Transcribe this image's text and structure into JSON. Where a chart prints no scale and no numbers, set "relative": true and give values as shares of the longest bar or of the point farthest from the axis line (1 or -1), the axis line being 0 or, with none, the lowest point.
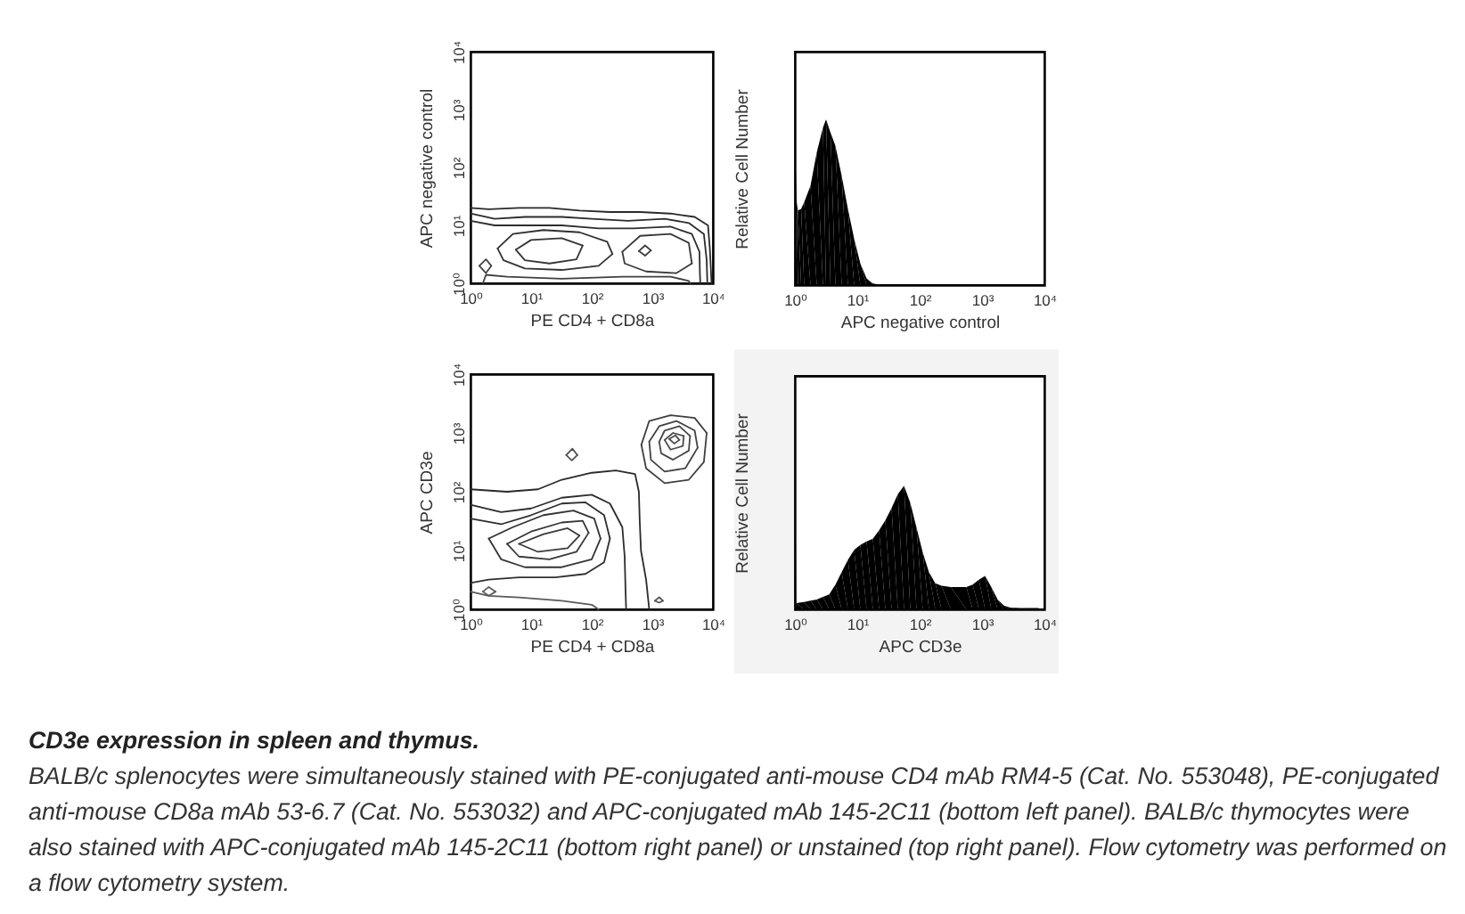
{
  "chart_data": [
    {
      "type": "line",
      "log": "xy",
      "xlabel": "PE CD4 + CD8a",
      "ylabel": "APC negative control",
      "xlim": [
        1,
        10000
      ],
      "ylim": [
        1,
        10000
      ],
      "xticks": [
        {
          "value": 1,
          "label": "10⁰"
        },
        {
          "value": 10,
          "label": "10¹"
        },
        {
          "value": 100,
          "label": "10²"
        },
        {
          "value": 1000,
          "label": "10³"
        },
        {
          "value": 10000,
          "label": "10⁴"
        }
      ],
      "yticks": [
        {
          "value": 1,
          "label": "10⁰"
        },
        {
          "value": 10,
          "label": "10¹"
        },
        {
          "value": 100,
          "label": "10²"
        },
        {
          "value": 1000,
          "label": "10³"
        },
        {
          "value": 10000,
          "label": "10⁴"
        }
      ],
      "series": [
        {
          "color": "#2a2a2a",
          "x": [
            1,
            2,
            6.3,
            20,
            63,
            200,
            630,
            2000,
            5000,
            8300,
            8900,
            9300,
            9500
          ],
          "values": [
            20,
            19,
            20,
            20,
            18,
            17,
            17,
            16,
            14,
            10,
            4,
            1.6,
            1
          ]
        },
        {
          "color": "#2c2c2c",
          "x": [
            1,
            2.5,
            7.9,
            32,
            100,
            400,
            1600,
            4000,
            7100,
            7900,
            8100
          ],
          "values": [
            16,
            13,
            14,
            14,
            13,
            12,
            13,
            11,
            7.1,
            2.5,
            1
          ]
        },
        {
          "color": "#2e2e2e",
          "x": [
            1,
            2.5,
            7.9,
            32,
            130,
            500,
            2000,
            4500,
            6000,
            6100,
            6200
          ],
          "values": [
            12,
            10,
            10,
            10,
            8.9,
            8.9,
            9.5,
            7.1,
            3.5,
            1.5,
            1
          ]
        },
        {
          "color": "#303030",
          "x": [
            2.8,
            5,
            16,
            63,
            180,
            220
          ],
          "values": [
            4,
            7.1,
            8.3,
            7.6,
            5.2,
            3.2
          ]
        },
        {
          "color": "#323232",
          "x": [
            2.8,
            3.5,
            7.9,
            32,
            130,
            220
          ],
          "values": [
            4,
            2.5,
            1.8,
            1.7,
            2,
            3.2
          ]
        },
        {
          "color": "#343434",
          "x": [
            5.6,
            10,
            32,
            71
          ],
          "values": [
            3.8,
            5.6,
            6,
            4.5
          ]
        },
        {
          "color": "#363636",
          "x": [
            5.6,
            7.9,
            20,
            56,
            71
          ],
          "values": [
            3.8,
            2.5,
            2.2,
            2.6,
            4.5
          ]
        },
        {
          "color": "#383838",
          "x": [
            320,
            630,
            2000,
            4000,
            4500
          ],
          "values": [
            3.5,
            6.6,
            7.1,
            5,
            2.2
          ]
        },
        {
          "color": "#3a3a3a",
          "x": [
            320,
            350,
            790,
            2500,
            4500
          ],
          "values": [
            3.5,
            2.2,
            1.6,
            1.5,
            2.2
          ]
        },
        {
          "color": "#3c3c3c",
          "x": [
            600,
            760,
            950
          ],
          "values": [
            3.6,
            4.5,
            3.7
          ]
        },
        {
          "color": "#3e3e3e",
          "x": [
            600,
            760,
            950
          ],
          "values": [
            3.6,
            3,
            3.7
          ]
        },
        {
          "color": "#404040",
          "x": [
            1.6,
            1.8,
            4,
            32,
            320,
            2000,
            4000,
            4200
          ],
          "values": [
            1,
            1.4,
            1.3,
            1.2,
            1.3,
            1.3,
            1.1,
            1
          ]
        },
        {
          "color": "#424242",
          "x": [
            1.4,
            1.8,
            2.2
          ],
          "values": [
            2,
            2.6,
            2
          ]
        },
        {
          "color": "#444444",
          "x": [
            1.4,
            1.8,
            2.2
          ],
          "values": [
            2,
            1.5,
            2
          ]
        }
      ]
    },
    {
      "type": "area",
      "relative": true,
      "log": "x",
      "color": "#000000",
      "xlabel": "APC negative control",
      "ylabel": "Relative Cell Number",
      "xlim": [
        1,
        10000
      ],
      "xticks": [
        {
          "value": 1,
          "label": "10⁰"
        },
        {
          "value": 10,
          "label": "10¹"
        },
        {
          "value": 100,
          "label": "10²"
        },
        {
          "value": 1000,
          "label": "10³"
        },
        {
          "value": 10000,
          "label": "10⁴"
        }
      ],
      "x": [
        1,
        1.07,
        1.12,
        1.26,
        1.41,
        1.78,
        2.24,
        2.82,
        3.16,
        3.72,
        4.47,
        5.62,
        7.08,
        8.91,
        11.2,
        14.1,
        17.8,
        25.1
      ],
      "values": [
        0.88,
        0.5,
        0.45,
        0.46,
        0.5,
        0.6,
        0.8,
        0.95,
        1,
        0.92,
        0.84,
        0.66,
        0.46,
        0.28,
        0.13,
        0.04,
        0.01,
        0
      ]
    },
    {
      "type": "line",
      "log": "xy",
      "xlabel": "PE CD4 + CD8a",
      "ylabel": "APC CD3e",
      "xlim": [
        1,
        10000
      ],
      "ylim": [
        1,
        10000
      ],
      "xticks": [
        {
          "value": 1,
          "label": "10⁰"
        },
        {
          "value": 10,
          "label": "10¹"
        },
        {
          "value": 100,
          "label": "10²"
        },
        {
          "value": 1000,
          "label": "10³"
        },
        {
          "value": 10000,
          "label": "10⁴"
        }
      ],
      "yticks": [
        {
          "value": 1,
          "label": "10⁰"
        },
        {
          "value": 10,
          "label": "10¹"
        },
        {
          "value": 100,
          "label": "10²"
        },
        {
          "value": 1000,
          "label": "10³"
        },
        {
          "value": 10000,
          "label": "10⁴"
        }
      ],
      "series": [
        {
          "color": "#2a2a2a",
          "x": [
            1,
            4,
            13,
            32,
            100,
            250,
            520,
            600,
            620,
            650,
            790,
            890
          ],
          "values": [
            110,
            100,
            110,
            160,
            210,
            230,
            200,
            100,
            32,
            10,
            3.2,
            1
          ]
        },
        {
          "color": "#2c2c2c",
          "x": [
            1,
            3.2,
            10,
            32,
            100,
            200,
            320,
            350,
            360,
            370
          ],
          "values": [
            60,
            45,
            52,
            79,
            89,
            63,
            25,
            7.9,
            2.5,
            1
          ]
        },
        {
          "color": "#2e2e2e",
          "x": [
            1,
            3.2,
            10,
            32,
            79,
            160,
            200
          ],
          "values": [
            35,
            28,
            40,
            63,
            66,
            40,
            16
          ]
        },
        {
          "color": "#303030",
          "x": [
            1,
            2,
            6.3,
            25,
            79,
            160,
            200
          ],
          "values": [
            2.8,
            3.2,
            3.5,
            3.5,
            4,
            6.3,
            16
          ]
        },
        {
          "color": "#323232",
          "x": [
            2,
            5,
            16,
            50,
            110,
            140
          ],
          "values": [
            16,
            25,
            40,
            48,
            35,
            16
          ]
        },
        {
          "color": "#343434",
          "x": [
            2,
            3.2,
            7.9,
            32,
            100,
            140
          ],
          "values": [
            16,
            7.1,
            5.2,
            5.2,
            7.1,
            16
          ]
        },
        {
          "color": "#363636",
          "x": [
            4,
            10,
            32,
            71,
            89
          ],
          "values": [
            13,
            21,
            30,
            32,
            20
          ]
        },
        {
          "color": "#383838",
          "x": [
            4,
            6.3,
            20,
            56,
            89
          ],
          "values": [
            13,
            7.9,
            7.1,
            9.5,
            20
          ]
        },
        {
          "color": "#3a3a3a",
          "x": [
            6.3,
            16,
            40,
            63
          ],
          "values": [
            13,
            19,
            24,
            18
          ]
        },
        {
          "color": "#3c3c3c",
          "x": [
            6.3,
            13,
            40,
            63
          ],
          "values": [
            13,
            9.5,
            11,
            18
          ]
        },
        {
          "color": "#3e3e3e",
          "x": [
            660,
            890,
            2000,
            5000,
            7900
          ],
          "values": [
            630,
            1600,
            2000,
            1800,
            1000
          ]
        },
        {
          "color": "#404040",
          "x": [
            660,
            790,
            1600,
            4000,
            7100,
            7900
          ],
          "values": [
            630,
            250,
            140,
            160,
            320,
            1000
          ]
        },
        {
          "color": "#424242",
          "x": [
            890,
            1300,
            2500,
            5000,
            5600
          ],
          "values": [
            710,
            1300,
            1600,
            1100,
            560
          ]
        },
        {
          "color": "#444444",
          "x": [
            890,
            950,
            1600,
            3500,
            5600
          ],
          "values": [
            710,
            350,
            220,
            250,
            560
          ]
        },
        {
          "color": "#464646",
          "x": [
            1300,
            1600,
            2800,
            4200
          ],
          "values": [
            710,
            1100,
            1300,
            890
          ]
        },
        {
          "color": "#484848",
          "x": [
            1300,
            1400,
            2200,
            4000,
            4200
          ],
          "values": [
            710,
            450,
            350,
            500,
            890
          ]
        },
        {
          "color": "#4a4a4a",
          "x": [
            1600,
            2200,
            3300
          ],
          "values": [
            760,
            1000,
            890
          ]
        },
        {
          "color": "#4c4c4c",
          "x": [
            1600,
            2000,
            3200,
            3300
          ],
          "values": [
            760,
            520,
            600,
            890
          ]
        },
        {
          "color": "#4e4e4e",
          "x": [
            1900,
            2400,
            2800
          ],
          "values": [
            790,
            910,
            760
          ]
        },
        {
          "color": "#505050",
          "x": [
            1900,
            2300,
            2800
          ],
          "values": [
            790,
            660,
            760
          ]
        },
        {
          "color": "#525252",
          "x": [
            38,
            48,
            58
          ],
          "values": [
            420,
            540,
            420
          ]
        },
        {
          "color": "#545454",
          "x": [
            38,
            47,
            58
          ],
          "values": [
            420,
            340,
            420
          ]
        },
        {
          "color": "#565656",
          "x": [
            1100,
            1300,
            1500
          ],
          "values": [
            1.4,
            1.6,
            1.4
          ]
        },
        {
          "color": "#585858",
          "x": [
            1100,
            1300,
            1500
          ],
          "values": [
            1.4,
            1.3,
            1.4
          ]
        },
        {
          "color": "#5a5a5a",
          "x": [
            1,
            2,
            6.3,
            32,
            100,
            130
          ],
          "values": [
            2,
            1.7,
            1.6,
            1.4,
            1.2,
            1
          ]
        },
        {
          "color": "#5c5c5c",
          "x": [
            1.6,
            2,
            2.6
          ],
          "values": [
            2,
            2.4,
            2
          ]
        },
        {
          "color": "#5e5e5e",
          "x": [
            1.6,
            2,
            2.6
          ],
          "values": [
            2,
            1.7,
            2
          ]
        }
      ]
    },
    {
      "type": "area",
      "relative": true,
      "log": "x",
      "color": "#000000",
      "xlabel": "APC CD3e",
      "ylabel": "Relative Cell Number",
      "xlim": [
        1,
        10000
      ],
      "xticks": [
        {
          "value": 1,
          "label": "10⁰"
        },
        {
          "value": 10,
          "label": "10¹"
        },
        {
          "value": 100,
          "label": "10²"
        },
        {
          "value": 1000,
          "label": "10³"
        },
        {
          "value": 10000,
          "label": "10⁴"
        }
      ],
      "x": [
        1,
        1.02,
        1.05,
        1.41,
        1.78,
        2.24,
        2.82,
        3.55,
        4.47,
        5.62,
        7.08,
        8.91,
        11.2,
        14.1,
        17.8,
        22.4,
        28.2,
        35.5,
        44.7,
        56.2,
        70.8,
        89.1,
        112,
        141,
        178,
        224,
        316,
        562,
        708,
        891,
        1120,
        1410,
        1780,
        2240,
        2820,
        3980,
        7940,
        8910
      ],
      "values": [
        0.98,
        0.98,
        0.05,
        0.06,
        0.07,
        0.08,
        0.1,
        0.12,
        0.2,
        0.3,
        0.4,
        0.48,
        0.52,
        0.55,
        0.57,
        0.64,
        0.72,
        0.82,
        0.93,
        1,
        0.86,
        0.66,
        0.46,
        0.3,
        0.21,
        0.19,
        0.18,
        0.18,
        0.2,
        0.24,
        0.27,
        0.18,
        0.08,
        0.03,
        0.015,
        0.01,
        0.01,
        0
      ]
    },
    {
      "type": "other",
      "title": "CD3e expression in spleen and thymus.",
      "annotations": [
        "BALB/c splenocytes were simultaneously stained with PE-conjugated anti-mouse CD4 mAb RM4-5 (Cat. No. 553048), PE-conjugated anti-mouse CD8a mAb 53-6.7 (Cat. No. 553032) and APC-conjugated mAb 145-2C11 (bottom left panel). BALB/c thymocytes were also stained with APC-conjugated mAb 145-2C11 (bottom right panel) or unstained (top right panel). Flow cytometry was performed on a flow cytometry system."
      ]
    }
  ]
}
